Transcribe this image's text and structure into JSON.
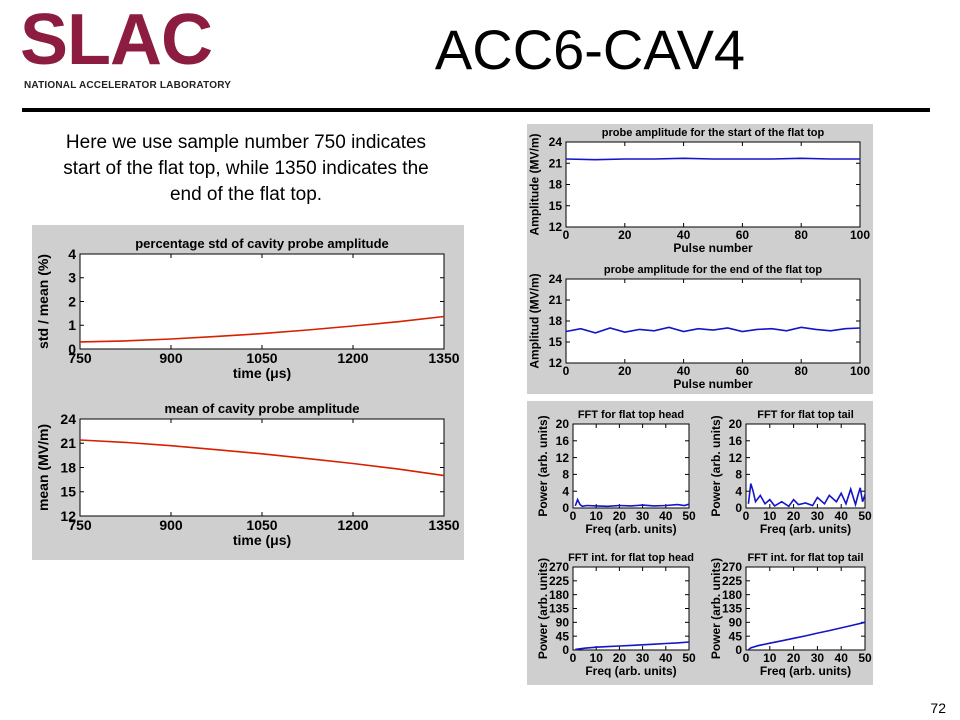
{
  "logo": {
    "word": "SLAC",
    "subtitle": "NATIONAL ACCELERATOR LABORATORY"
  },
  "slide": {
    "title": "ACC6-CAV4",
    "note": "Here we use sample number 750 indicates start of the flat top, while 1350 indicates the end of the flat top.",
    "page_number": "72"
  },
  "colors": {
    "brand": "#8c1d40",
    "panel": "#cfcfcf",
    "red_line": "#d62000",
    "blue_line": "#1414c8"
  },
  "chart_data": [
    {
      "id": "std",
      "type": "line",
      "title": "percentage std of cavity probe amplitude",
      "xlabel": "time (μs)",
      "ylabel": "std / mean (%)",
      "xlim": [
        750,
        1350
      ],
      "ylim": [
        0,
        4
      ],
      "xticks": [
        750,
        900,
        1050,
        1200,
        1350
      ],
      "yticks": [
        0,
        1,
        2,
        3,
        4
      ],
      "series": [
        {
          "color": "#d62000",
          "x": [
            750,
            825,
            900,
            975,
            1050,
            1125,
            1200,
            1275,
            1350
          ],
          "y": [
            0.3,
            0.34,
            0.42,
            0.53,
            0.65,
            0.8,
            0.97,
            1.15,
            1.37
          ]
        }
      ]
    },
    {
      "id": "mean",
      "type": "line",
      "title": "mean of cavity probe amplitude",
      "xlabel": "time (μs)",
      "ylabel": "mean (MV/m)",
      "xlim": [
        750,
        1350
      ],
      "ylim": [
        12,
        24
      ],
      "xticks": [
        750,
        900,
        1050,
        1200,
        1350
      ],
      "yticks": [
        12,
        15,
        18,
        21,
        24
      ],
      "series": [
        {
          "color": "#d62000",
          "x": [
            750,
            825,
            900,
            975,
            1050,
            1125,
            1200,
            1275,
            1350
          ],
          "y": [
            21.4,
            21.1,
            20.7,
            20.2,
            19.7,
            19.1,
            18.5,
            17.8,
            17.0
          ]
        }
      ]
    },
    {
      "id": "start",
      "type": "line",
      "title": "probe amplitude for the start of the flat top",
      "xlabel": "Pulse number",
      "ylabel": "Amplitude (MV/m)",
      "xlim": [
        0,
        100
      ],
      "ylim": [
        12,
        24
      ],
      "xticks": [
        0,
        20,
        40,
        60,
        80,
        100
      ],
      "yticks": [
        12,
        15,
        18,
        21,
        24
      ],
      "series": [
        {
          "color": "#1414c8",
          "x": [
            0,
            10,
            20,
            30,
            40,
            50,
            60,
            70,
            80,
            90,
            100
          ],
          "y": [
            21.6,
            21.5,
            21.6,
            21.6,
            21.7,
            21.6,
            21.6,
            21.6,
            21.7,
            21.6,
            21.6
          ]
        }
      ]
    },
    {
      "id": "end",
      "type": "line",
      "title": "probe amplitude for the end of the flat top",
      "xlabel": "Pulse number",
      "ylabel": "Amplitud (MV/m)",
      "xlim": [
        0,
        100
      ],
      "ylim": [
        12,
        24
      ],
      "xticks": [
        0,
        20,
        40,
        60,
        80,
        100
      ],
      "yticks": [
        12,
        15,
        18,
        21,
        24
      ],
      "series": [
        {
          "color": "#1414c8",
          "x": [
            0,
            5,
            10,
            15,
            20,
            25,
            30,
            35,
            40,
            45,
            50,
            55,
            60,
            65,
            70,
            75,
            80,
            85,
            90,
            95,
            100
          ],
          "y": [
            16.5,
            16.9,
            16.3,
            17.0,
            16.4,
            16.8,
            16.6,
            17.1,
            16.5,
            16.9,
            16.7,
            17.0,
            16.5,
            16.8,
            16.9,
            16.6,
            17.1,
            16.8,
            16.6,
            16.9,
            17.0
          ]
        }
      ]
    },
    {
      "id": "fft-head",
      "type": "line",
      "title": "FFT for flat top head",
      "xlabel": "Freq (arb. units)",
      "ylabel": "Power (arb. units)",
      "xlim": [
        0,
        50
      ],
      "ylim": [
        0,
        20
      ],
      "xticks": [
        0,
        10,
        20,
        30,
        40,
        50
      ],
      "yticks": [
        0,
        4,
        8,
        12,
        16,
        20
      ],
      "series": [
        {
          "color": "#1414c8",
          "x": [
            1,
            2,
            3,
            4,
            6,
            10,
            15,
            20,
            25,
            30,
            35,
            40,
            45,
            48,
            50
          ],
          "y": [
            0.5,
            2.0,
            0.8,
            0.4,
            0.6,
            0.5,
            0.4,
            0.6,
            0.5,
            0.7,
            0.5,
            0.6,
            0.8,
            0.6,
            0.9
          ]
        }
      ]
    },
    {
      "id": "fft-tail",
      "type": "line",
      "title": "FFT for flat top tail",
      "xlabel": "Freq (arb. units)",
      "ylabel": "Power (arb. units)",
      "xlim": [
        0,
        50
      ],
      "ylim": [
        0,
        20
      ],
      "xticks": [
        0,
        10,
        20,
        30,
        40,
        50
      ],
      "yticks": [
        0,
        4,
        8,
        12,
        16,
        20
      ],
      "series": [
        {
          "color": "#1414c8",
          "x": [
            1,
            2,
            3,
            4,
            6,
            8,
            10,
            12,
            15,
            18,
            20,
            22,
            25,
            28,
            30,
            33,
            35,
            38,
            40,
            42,
            44,
            46,
            47,
            48,
            49,
            50
          ],
          "y": [
            1.0,
            5.8,
            4.0,
            1.5,
            3.0,
            1.0,
            2.0,
            0.5,
            1.5,
            0.4,
            2.0,
            0.8,
            1.2,
            0.6,
            2.5,
            1.0,
            3.0,
            1.5,
            3.5,
            1.0,
            4.5,
            0.8,
            3.0,
            4.8,
            1.5,
            3.2
          ]
        }
      ]
    },
    {
      "id": "fft-int-head",
      "type": "line",
      "title": "FFT int. for flat top head",
      "xlabel": "Freq (arb. units)",
      "ylabel": "Power (arb. units)",
      "xlim": [
        0,
        50
      ],
      "ylim": [
        0,
        270
      ],
      "xticks": [
        0,
        10,
        20,
        30,
        40,
        50
      ],
      "yticks": [
        0,
        45,
        90,
        135,
        180,
        225,
        270
      ],
      "series": [
        {
          "color": "#1414c8",
          "x": [
            1,
            5,
            10,
            15,
            20,
            25,
            30,
            35,
            40,
            45,
            50
          ],
          "y": [
            2,
            6,
            9,
            11,
            13,
            15,
            17,
            19,
            21,
            23,
            26
          ]
        }
      ]
    },
    {
      "id": "fft-int-tail",
      "type": "line",
      "title": "FFT int. for flat top tail",
      "xlabel": "Freq (arb. units)",
      "ylabel": "Power (arb. units)",
      "xlim": [
        0,
        50
      ],
      "ylim": [
        0,
        270
      ],
      "xticks": [
        0,
        10,
        20,
        30,
        40,
        50
      ],
      "yticks": [
        0,
        45,
        90,
        135,
        180,
        225,
        270
      ],
      "series": [
        {
          "color": "#1414c8",
          "x": [
            1,
            2,
            5,
            10,
            15,
            20,
            25,
            30,
            35,
            40,
            45,
            50
          ],
          "y": [
            1,
            7,
            14,
            22,
            30,
            38,
            46,
            55,
            63,
            72,
            81,
            90
          ]
        }
      ]
    }
  ]
}
